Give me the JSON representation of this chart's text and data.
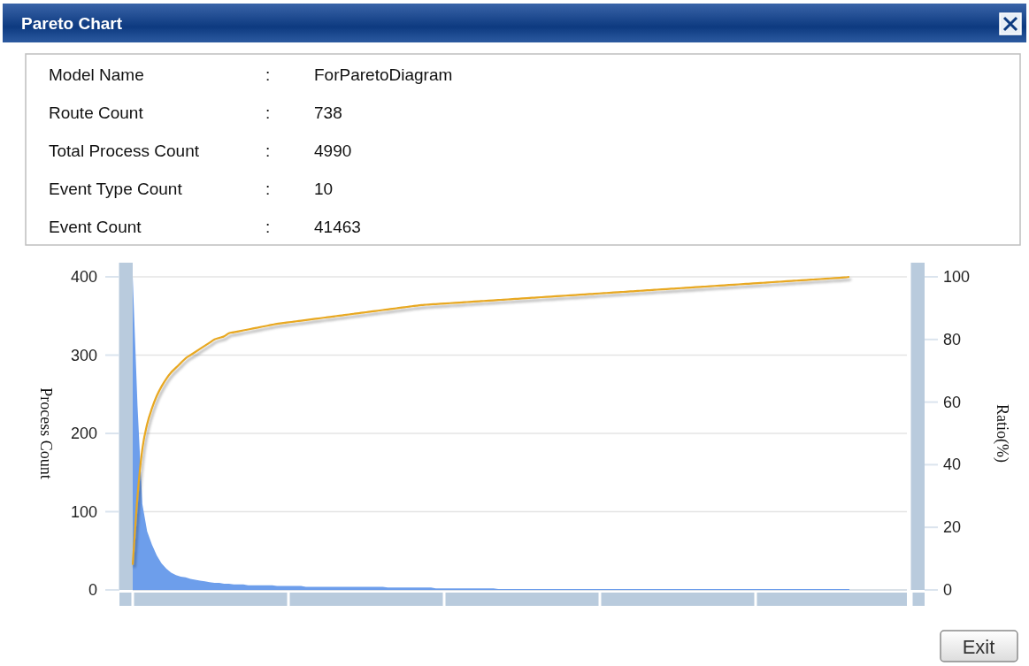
{
  "chart_data": {
    "type": "area",
    "title": "Pareto Chart",
    "ylabel": "Process Count",
    "y2label": "Ratio(%)",
    "annotations": [
      "Model Name",
      ":",
      "ForParetoDiagram",
      "Route Count",
      ":",
      "738",
      "Total Process Count",
      ":",
      "4990",
      "Event Type Count",
      ":",
      "10",
      "Event Count",
      ":",
      "41463",
      "Exit"
    ],
    "categories": [
      null,
      null,
      null,
      null,
      null,
      null,
      null,
      null,
      null,
      null,
      null,
      null,
      null,
      null,
      null,
      null,
      null,
      null,
      null,
      null,
      null,
      null,
      null,
      null,
      null,
      null,
      null,
      null,
      null,
      null,
      null,
      null,
      null,
      null,
      null,
      null,
      null,
      null,
      null,
      null,
      null,
      null,
      null,
      null,
      null,
      null,
      null,
      null,
      null,
      null,
      null,
      null,
      null,
      null,
      null,
      null,
      null,
      null,
      null,
      null,
      null,
      null,
      null,
      null,
      null,
      null,
      null,
      null,
      null,
      null,
      null,
      null,
      null,
      null,
      null,
      null,
      null,
      null,
      null,
      null,
      null,
      null,
      null,
      null,
      null,
      null,
      null,
      null,
      null,
      null,
      null,
      null,
      null,
      null,
      null,
      null,
      null,
      null,
      null,
      null,
      null,
      null,
      null,
      null,
      null,
      null,
      null,
      null,
      null,
      null,
      null,
      null,
      null,
      null,
      null,
      null,
      null,
      null,
      null,
      null,
      null,
      null,
      null,
      null,
      null,
      null,
      null,
      null,
      null,
      null,
      null,
      null,
      null,
      null,
      null,
      null,
      null,
      null,
      null,
      null,
      null,
      null,
      null,
      null,
      null,
      null,
      null,
      null,
      null,
      null
    ],
    "series": [
      {
        "name": null,
        "color": "#6d9eeb",
        "values": [
          400,
          235,
          110,
          75,
          58,
          44,
          34,
          27,
          22,
          19,
          17,
          16,
          14,
          13,
          12,
          11,
          10,
          9,
          9,
          8,
          8,
          7,
          7,
          7,
          6,
          6,
          6,
          6,
          6,
          6,
          5,
          5,
          5,
          5,
          5,
          5,
          4,
          4,
          4,
          4,
          4,
          4,
          4,
          4,
          4,
          4,
          4,
          4,
          4,
          4,
          4,
          4,
          4,
          3,
          3,
          3,
          3,
          3,
          3,
          3,
          3,
          3,
          3,
          2,
          2,
          2,
          2,
          2,
          2,
          2,
          2,
          2,
          2,
          2,
          2,
          2,
          1,
          1,
          1,
          1,
          1,
          1,
          1,
          1,
          1,
          1,
          1,
          1,
          1,
          1,
          1,
          1,
          1,
          1,
          1,
          1,
          1,
          1,
          1,
          1,
          1,
          1,
          1,
          1,
          1,
          1,
          1,
          1,
          1,
          1,
          1,
          1,
          1,
          1,
          1,
          1,
          1,
          1,
          1,
          1,
          1,
          1,
          1,
          1,
          1,
          1,
          1,
          1,
          1,
          1,
          1,
          1,
          1,
          1,
          1,
          1,
          1,
          1,
          1,
          1,
          1,
          1,
          1,
          1,
          1,
          1,
          1,
          1,
          1,
          1
        ]
      },
      {
        "name": null,
        "type": "line",
        "axis": "y2",
        "color": "#e8a820",
        "values": [
          8,
          30,
          45,
          53,
          58,
          62,
          65,
          67.5,
          69.5,
          71,
          72.5,
          74,
          75,
          76,
          77,
          78,
          79,
          80,
          80.5,
          81,
          82,
          82.3,
          82.6,
          82.9,
          83.2,
          83.5,
          83.8,
          84.1,
          84.4,
          84.7,
          85,
          85.2,
          85.4,
          85.6,
          85.8,
          86,
          86.2,
          86.4,
          86.6,
          86.8,
          87,
          87.2,
          87.4,
          87.6,
          87.8,
          88,
          88.2,
          88.4,
          88.6,
          88.8,
          89,
          89.2,
          89.4,
          89.6,
          89.8,
          90,
          90.2,
          90.4,
          90.6,
          90.8,
          91,
          91.1,
          91.2,
          91.3,
          91.4,
          91.5,
          91.6,
          91.7,
          91.8,
          91.9,
          92,
          92.1,
          92.2,
          92.3,
          92.4,
          92.5,
          92.6,
          92.7,
          92.8,
          92.9,
          93,
          93.1,
          93.2,
          93.3,
          93.4,
          93.5,
          93.6,
          93.7,
          93.8,
          93.9,
          94,
          94.1,
          94.2,
          94.3,
          94.4,
          94.5,
          94.6,
          94.7,
          94.8,
          94.9,
          95,
          95.1,
          95.2,
          95.3,
          95.4,
          95.5,
          95.6,
          95.7,
          95.8,
          95.9,
          96,
          96.1,
          96.2,
          96.3,
          96.4,
          96.5,
          96.6,
          96.7,
          96.8,
          96.9,
          97,
          97.1,
          97.2,
          97.3,
          97.4,
          97.5,
          97.6,
          97.7,
          97.8,
          97.9,
          98,
          98.1,
          98.2,
          98.3,
          98.4,
          98.5,
          98.6,
          98.7,
          98.8,
          98.9,
          99,
          99.1,
          99.2,
          99.3,
          99.4,
          99.5,
          99.6,
          99.7,
          99.8,
          100
        ]
      }
    ],
    "ylim": [
      0,
      400
    ],
    "yticks": [
      0,
      100,
      200,
      300,
      400
    ],
    "y2lim": [
      0,
      100
    ],
    "y2ticks": [
      0,
      20,
      40,
      60,
      80,
      100
    ],
    "grid": "y"
  }
}
